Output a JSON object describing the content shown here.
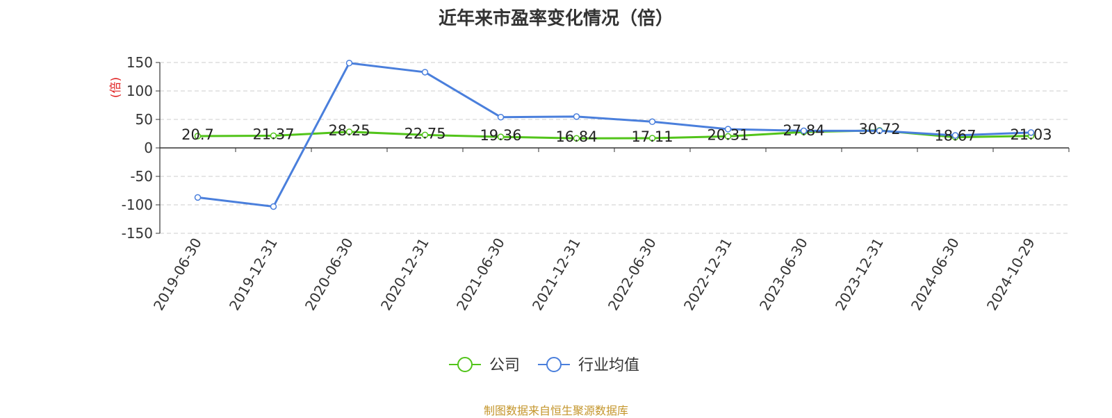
{
  "title": "近年来市盈率变化情况（倍）",
  "source": "制图数据来自恒生聚源数据库",
  "colors": {
    "company": "#52c41a",
    "industry": "#4a7fdc",
    "unit": "#e02020",
    "source": "#c4962c"
  },
  "chart_data": {
    "type": "line",
    "title": "近年来市盈率变化情况（倍）",
    "ylabel": "(倍)",
    "ylim": [
      -150,
      150
    ],
    "yticks": [
      150,
      100,
      50,
      0,
      -50,
      -100,
      -150
    ],
    "grid": true,
    "legend_position": "bottom-center",
    "categories": [
      "2019-06-30",
      "2019-12-31",
      "2020-06-30",
      "2020-12-31",
      "2021-06-30",
      "2021-12-31",
      "2022-06-30",
      "2022-12-31",
      "2023-06-30",
      "2023-12-31",
      "2024-06-30",
      "2024-10-29"
    ],
    "series": [
      {
        "name": "公司",
        "color": "#52c41a",
        "values": [
          20.7,
          21.37,
          28.25,
          22.75,
          19.36,
          16.84,
          17.11,
          20.31,
          27.84,
          30.72,
          18.67,
          21.03
        ],
        "labels": [
          "20.7",
          "21.37",
          "28.25",
          "22.75",
          "19.36",
          "16.84",
          "17.11",
          "20.31",
          "27.84",
          "30.72",
          "18.67",
          "21.03"
        ]
      },
      {
        "name": "行业均值",
        "color": "#4a7fdc",
        "values": [
          -87,
          -103,
          149,
          133,
          54,
          55,
          46,
          33,
          30,
          30,
          22,
          27
        ]
      }
    ]
  }
}
